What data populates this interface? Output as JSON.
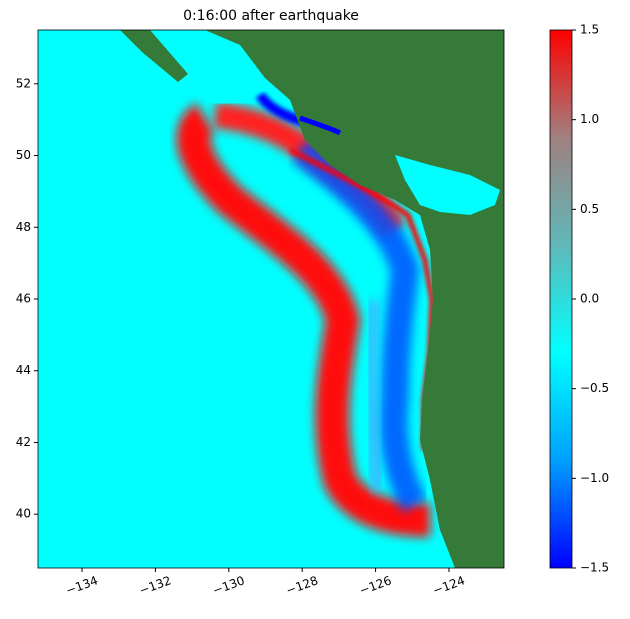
{
  "chart_data": {
    "type": "heatmap",
    "title": "0:16:00 after earthquake",
    "xlim": [
      -135.2,
      -122.5
    ],
    "ylim": [
      38.5,
      53.5
    ],
    "xticks": [
      {
        "value": -134,
        "label": "−134"
      },
      {
        "value": -132,
        "label": "−132"
      },
      {
        "value": -130,
        "label": "−130"
      },
      {
        "value": -128,
        "label": "−128"
      },
      {
        "value": -126,
        "label": "−126"
      },
      {
        "value": -124,
        "label": "−124"
      }
    ],
    "yticks": [
      40,
      42,
      44,
      46,
      48,
      50,
      52
    ],
    "ocean_color": "#00ffff",
    "land_color": "#357a38",
    "colorbar": {
      "lim": [
        -1.5,
        1.5
      ],
      "ticks": [
        {
          "value": -1.5,
          "label": "−1.5"
        },
        {
          "value": -1.0,
          "label": "−1.0"
        },
        {
          "value": -0.5,
          "label": "−0.5"
        },
        {
          "value": 0.0,
          "label": "0.0"
        },
        {
          "value": 0.5,
          "label": "0.5"
        },
        {
          "value": 1.0,
          "label": "1.0"
        },
        1.5
      ],
      "colors": [
        "#0000ff",
        "#00a0ff",
        "#00ffff",
        "#60b8b8",
        "#a08080",
        "#ff0000"
      ]
    }
  }
}
